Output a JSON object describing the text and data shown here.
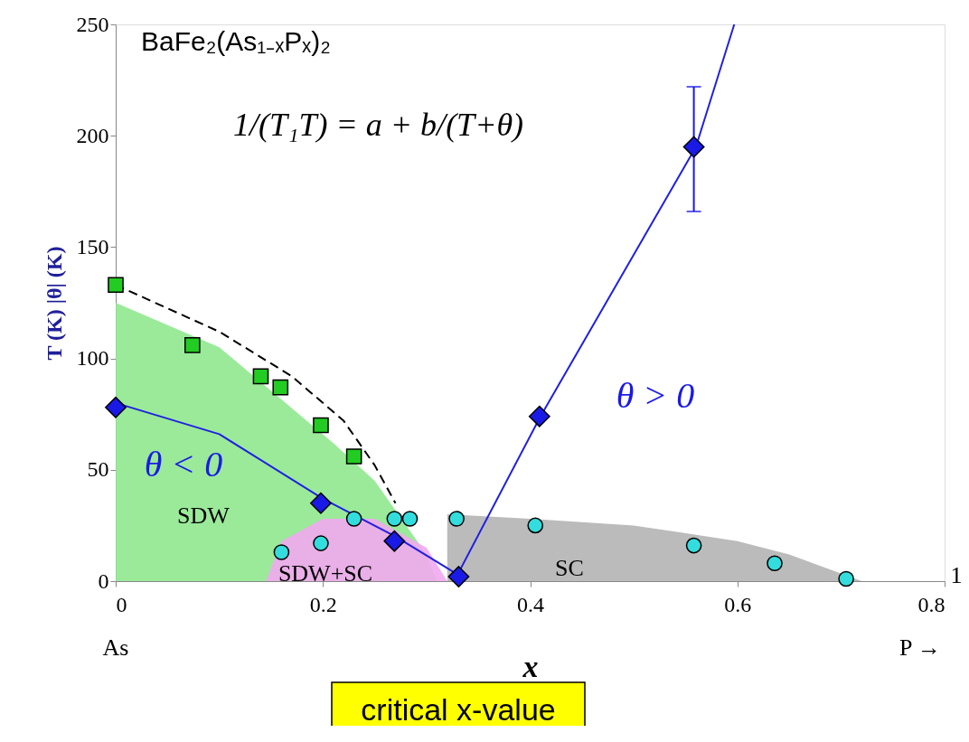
{
  "chart_data": {
    "type": "scatter",
    "xlabel": "x",
    "ylabel": "T (K)  |θ| (K)",
    "xlim": [
      0,
      0.8
    ],
    "xticks": [
      0,
      0.2,
      0.4,
      0.6,
      0.8
    ],
    "ylim": [
      0,
      250
    ],
    "yticks": [
      0,
      50,
      100,
      150,
      200,
      250
    ],
    "grid": false,
    "series": [
      {
        "type": "area",
        "color": "#8fe88f",
        "x": [
          0,
          0.1,
          0.21,
          0.25,
          0.3,
          0.31
        ],
        "values": [
          125,
          105,
          62,
          45,
          12,
          0
        ]
      },
      {
        "type": "area",
        "color": "#f2a8f0",
        "x": [
          0.145,
          0.16,
          0.2,
          0.25,
          0.3,
          0.32
        ],
        "values": [
          0,
          18,
          28,
          28,
          15,
          0
        ]
      },
      {
        "type": "area",
        "color": "#b4b4b4",
        "x": [
          0.32,
          0.4,
          0.5,
          0.6,
          0.65,
          0.72
        ],
        "values": [
          30,
          28,
          25,
          18,
          12,
          0
        ]
      },
      {
        "type": "line",
        "color": "#000000",
        "line_style": "dashed",
        "marker": "none",
        "x": [
          0,
          0.1,
          0.17,
          0.22,
          0.25,
          0.27
        ],
        "values": [
          133,
          112,
          92,
          72,
          52,
          35
        ]
      },
      {
        "type": "line",
        "color": "#2020e0",
        "line_style": "solid",
        "marker": "none",
        "x": [
          0,
          0.1,
          0.2,
          0.27,
          0.33,
          0.41,
          0.56,
          0.597
        ],
        "values": [
          80,
          66,
          37,
          20,
          3,
          74,
          195,
          250
        ]
      },
      {
        "color": "#22cc22",
        "marker": "square",
        "x": [
          0,
          0.074,
          0.14,
          0.159,
          0.198,
          0.23
        ],
        "values": [
          133,
          106,
          92,
          87,
          70,
          56
        ]
      },
      {
        "color": "#33dddd",
        "marker": "circle",
        "x": [
          0.16,
          0.198,
          0.23,
          0.269,
          0.284,
          0.329,
          0.405,
          0.558,
          0.636,
          0.705
        ],
        "values": [
          13,
          17,
          28,
          28,
          28,
          28,
          25,
          16,
          8,
          1
        ]
      },
      {
        "color": "#1a1ae6",
        "marker": "diamond",
        "x": [
          0,
          0.198,
          0.269,
          0.331,
          0.409,
          0.558
        ],
        "values": [
          78,
          35,
          18,
          2,
          74,
          195
        ],
        "errors": [
          null,
          null,
          null,
          null,
          null,
          [
            166,
            222
          ]
        ]
      }
    ],
    "annotations": [
      "BaFe₂(As₁₋ₓPₓ)₂",
      "1/(T₁T) = a + b/(T+θ)",
      "As",
      "P →",
      "1",
      "critical x-value",
      "θ > 0",
      "θ < 0",
      "SDW",
      "SDW+SC",
      "SC"
    ]
  }
}
